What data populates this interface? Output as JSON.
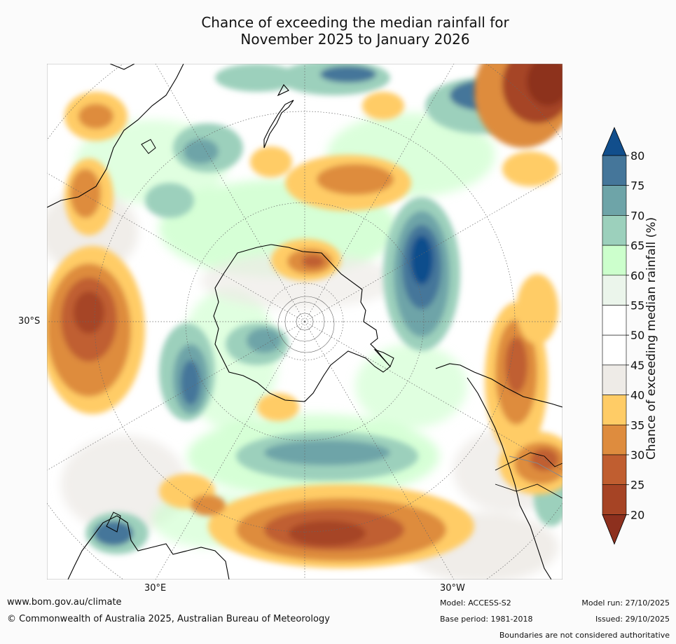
{
  "title_line1": "Chance of exceeding the median rainfall for",
  "title_line2": "November 2025 to January 2026",
  "map": {
    "lat_label": "30°S",
    "lon_label_east": "30°E",
    "lon_label_west": "30°W"
  },
  "colorbar": {
    "label": "Chance of exceeding median rainfall (%)",
    "ticks": [
      "80",
      "75",
      "70",
      "65",
      "60",
      "55",
      "50",
      "45",
      "40",
      "35",
      "30",
      "25",
      "20"
    ],
    "colors_top_to_bottom": [
      "#114e8c",
      "#45769a",
      "#6ea4a8",
      "#9cd0bc",
      "#ccffcc",
      "#ebf5eb",
      "#ffffff",
      "#ffffff",
      "#eeebe7",
      "#ffcc66",
      "#de8c3e",
      "#c05e30",
      "#a64425",
      "#8d301e"
    ],
    "colors": {
      "deep_blue": "#114e8c",
      "teal": "#45769a",
      "green": "#ccffcc",
      "orange": "#de8c3e",
      "brown": "#8d301e"
    }
  },
  "footer": {
    "website": "www.bom.gov.au/climate",
    "copyright": "© Commonwealth of Australia 2025, Australian Bureau of Meteorology",
    "model": "Model: ACCESS-S2",
    "base_period": "Base period: 1981-2018",
    "model_run": "Model run: 27/10/2025",
    "issued": "Issued: 29/10/2025",
    "disclaimer": "Boundaries are not considered authoritative"
  }
}
